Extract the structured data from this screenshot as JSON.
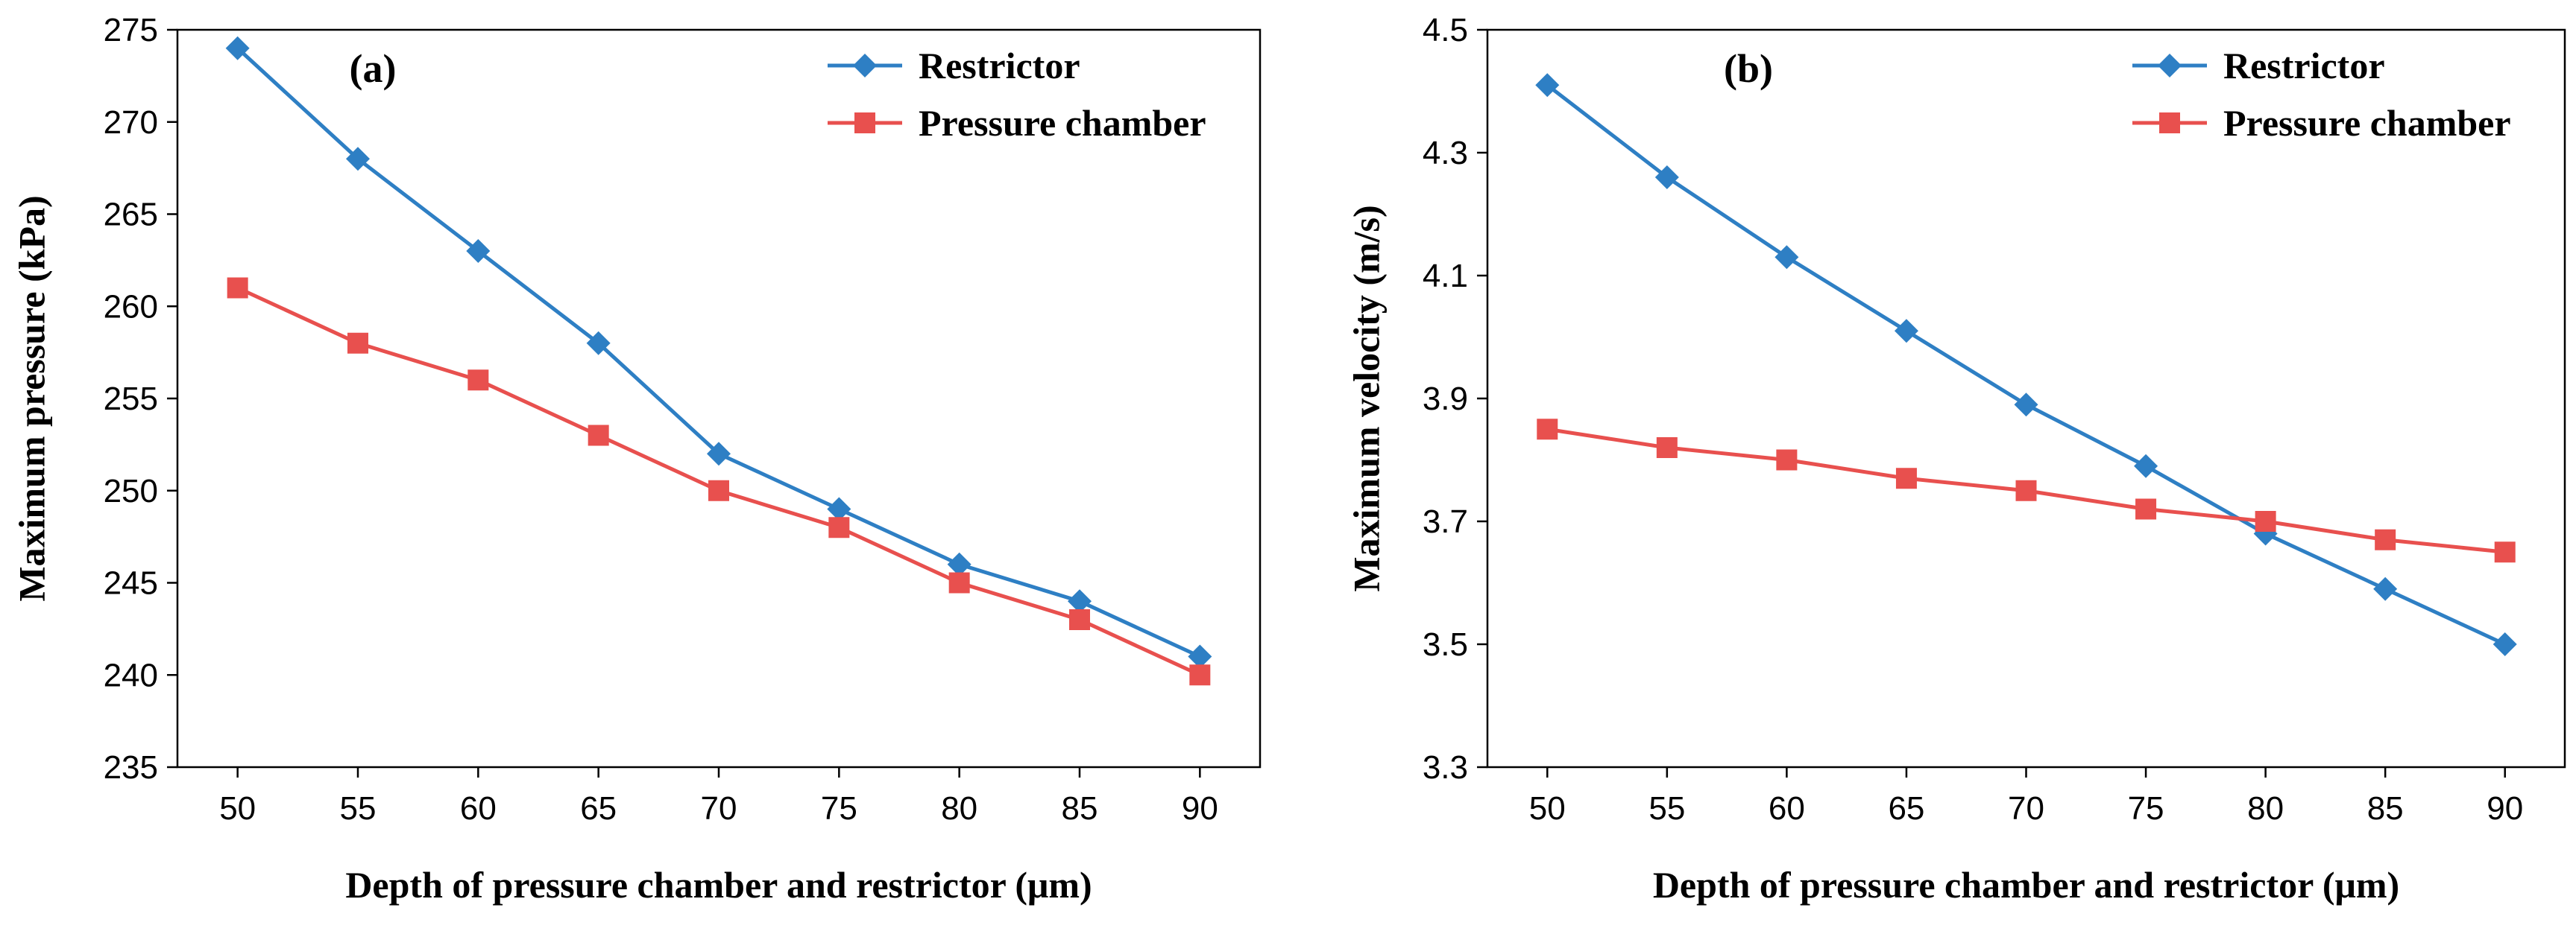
{
  "chart_data": [
    {
      "type": "line",
      "panel_label": "(a)",
      "xlabel": "Depth of pressure chamber and restrictor (μm)",
      "ylabel": "Maximum pressure (kPa)",
      "x": [
        50,
        55,
        60,
        65,
        70,
        75,
        80,
        85,
        90
      ],
      "xticks": [
        "50",
        "55",
        "60",
        "65",
        "70",
        "75",
        "80",
        "85",
        "90"
      ],
      "ylim": [
        235,
        275
      ],
      "yticks": [
        "235",
        "240",
        "245",
        "250",
        "255",
        "260",
        "265",
        "270",
        "275"
      ],
      "grid": false,
      "legend_position": "top-right",
      "series": [
        {
          "name": "Restrictor",
          "marker": "diamond",
          "color": "#2E7FC4",
          "values": [
            274,
            268,
            263,
            258,
            252,
            249,
            246,
            244,
            241
          ]
        },
        {
          "name": "Pressure chamber",
          "marker": "square",
          "color": "#E8504E",
          "values": [
            261,
            258,
            256,
            253,
            250,
            248,
            245,
            243,
            240
          ]
        }
      ]
    },
    {
      "type": "line",
      "panel_label": "(b)",
      "xlabel": "Depth of pressure chamber and restrictor (μm)",
      "ylabel": "Maximum velocity (m/s)",
      "x": [
        50,
        55,
        60,
        65,
        70,
        75,
        80,
        85,
        90
      ],
      "xticks": [
        "50",
        "55",
        "60",
        "65",
        "70",
        "75",
        "80",
        "85",
        "90"
      ],
      "ylim": [
        3.3,
        4.5
      ],
      "yticks": [
        "3.3",
        "3.5",
        "3.7",
        "3.9",
        "4.1",
        "4.3",
        "4.5"
      ],
      "grid": false,
      "legend_position": "top-right",
      "series": [
        {
          "name": "Restrictor",
          "marker": "diamond",
          "color": "#2E7FC4",
          "values": [
            4.41,
            4.26,
            4.13,
            4.01,
            3.89,
            3.79,
            3.68,
            3.59,
            3.5
          ]
        },
        {
          "name": "Pressure chamber",
          "marker": "square",
          "color": "#E8504E",
          "values": [
            3.85,
            3.82,
            3.8,
            3.77,
            3.75,
            3.72,
            3.7,
            3.67,
            3.65
          ]
        }
      ]
    }
  ]
}
